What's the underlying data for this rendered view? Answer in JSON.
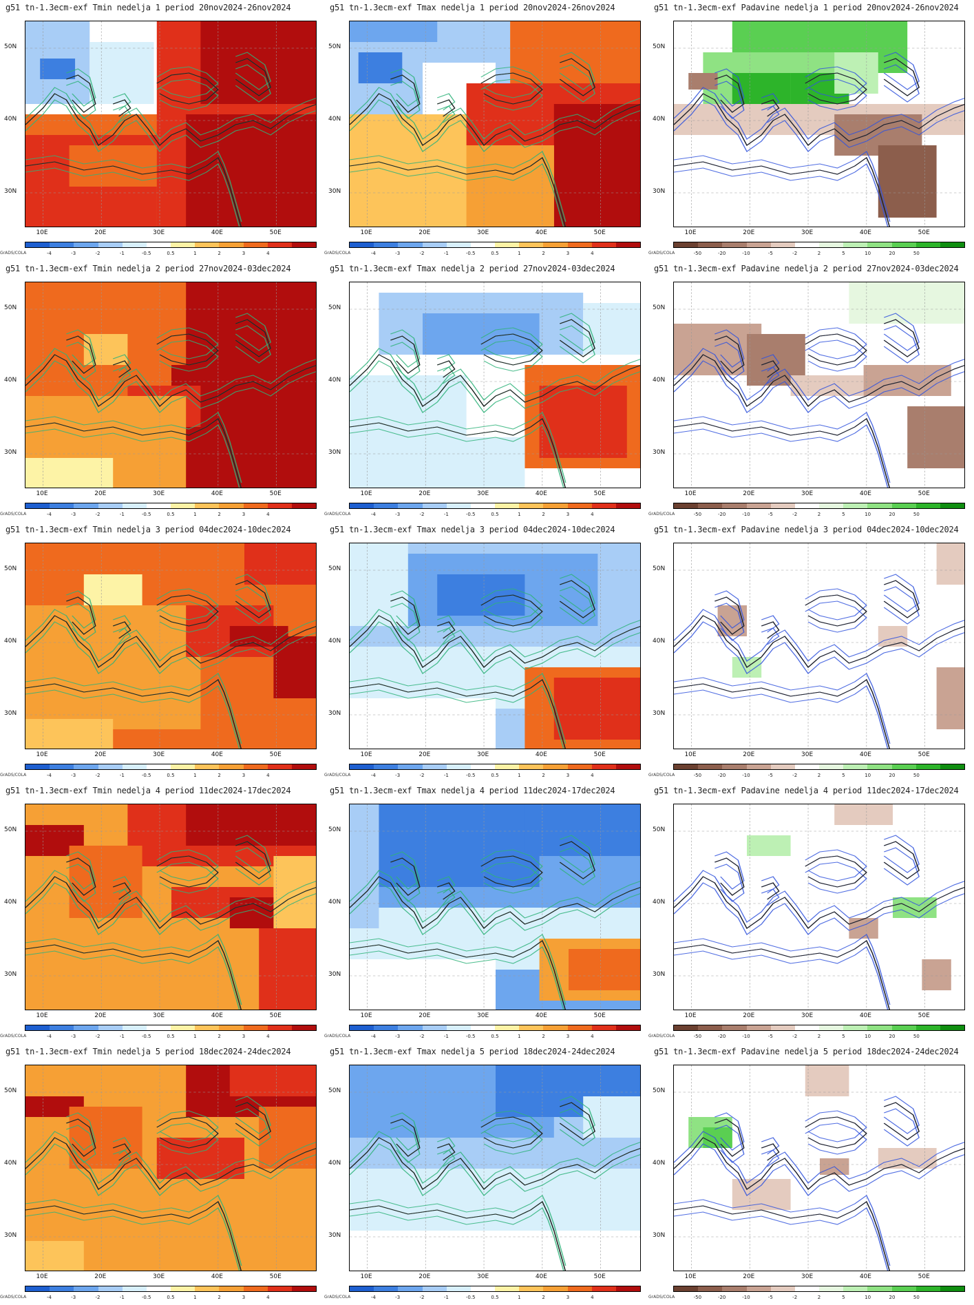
{
  "grads_label": "GrADS/COLA",
  "lat_labels": [
    "50N",
    "40N",
    "30N"
  ],
  "lon_labels": [
    "10E",
    "20E",
    "30E",
    "40E",
    "50E"
  ],
  "temp_scale": {
    "ticks": [
      "-4",
      "-3",
      "-2",
      "-1",
      "-0.5",
      "0.5",
      "1",
      "2",
      "3",
      "4"
    ],
    "colors": [
      "#1e5fd0",
      "#3d7fe0",
      "#6da6ee",
      "#a8cdf6",
      "#d8f0fb",
      "#ffffff",
      "#fdf3a6",
      "#fdc45a",
      "#f6a035",
      "#ef6a1e",
      "#e0301a",
      "#b10d0d"
    ]
  },
  "precip_scale": {
    "ticks": [
      "-50",
      "-20",
      "-10",
      "-5",
      "-2",
      "2",
      "5",
      "10",
      "20",
      "50"
    ],
    "colors": [
      "#6b4030",
      "#8c5e4c",
      "#a97e6d",
      "#c9a393",
      "#e4cbbf",
      "#ffffff",
      "#e6f7e0",
      "#bdf0b4",
      "#8fe283",
      "#5acf52",
      "#2db42a",
      "#0f8e10"
    ]
  },
  "panels": [
    {
      "row": 1,
      "col": 1,
      "title": "g51  tn-1.3ecm-exf Tmin nedelja 1 period 20nov2024-26nov2024",
      "var": "Tmin",
      "week": 1,
      "period": "20nov2024-26nov2024"
    },
    {
      "row": 1,
      "col": 2,
      "title": "g51  tn-1.3ecm-exf Tmax nedelja 1 period 20nov2024-26nov2024",
      "var": "Tmax",
      "week": 1,
      "period": "20nov2024-26nov2024"
    },
    {
      "row": 1,
      "col": 3,
      "title": "g51  tn-1.3ecm-exf Padavine nedelja 1 period 20nov2024-26nov2024",
      "var": "Padavine",
      "week": 1,
      "period": "20nov2024-26nov2024"
    },
    {
      "row": 2,
      "col": 1,
      "title": "g51  tn-1.3ecm-exf Tmin nedelja 2 period 27nov2024-03dec2024",
      "var": "Tmin",
      "week": 2,
      "period": "27nov2024-03dec2024"
    },
    {
      "row": 2,
      "col": 2,
      "title": "g51  tn-1.3ecm-exf Tmax nedelja 2 period 27nov2024-03dec2024",
      "var": "Tmax",
      "week": 2,
      "period": "27nov2024-03dec2024"
    },
    {
      "row": 2,
      "col": 3,
      "title": "g51  tn-1.3ecm-exf Padavine nedelja 2 period 27nov2024-03dec2024",
      "var": "Padavine",
      "week": 2,
      "period": "27nov2024-03dec2024"
    },
    {
      "row": 3,
      "col": 1,
      "title": "g51  tn-1.3ecm-exf Tmin nedelja 3 period 04dec2024-10dec2024",
      "var": "Tmin",
      "week": 3,
      "period": "04dec2024-10dec2024"
    },
    {
      "row": 3,
      "col": 2,
      "title": "g51  tn-1.3ecm-exf Tmax nedelja 3 period 04dec2024-10dec2024",
      "var": "Tmax",
      "week": 3,
      "period": "04dec2024-10dec2024"
    },
    {
      "row": 3,
      "col": 3,
      "title": "g51  tn-1.3ecm-exf Padavine nedelja 3 period 04dec2024-10dec2024",
      "var": "Padavine",
      "week": 3,
      "period": "04dec2024-10dec2024"
    },
    {
      "row": 4,
      "col": 1,
      "title": "g51  tn-1.3ecm-exf Tmin nedelja 4 period 11dec2024-17dec2024",
      "var": "Tmin",
      "week": 4,
      "period": "11dec2024-17dec2024"
    },
    {
      "row": 4,
      "col": 2,
      "title": "g51  tn-1.3ecm-exf Tmax nedelja 4 period 11dec2024-17dec2024",
      "var": "Tmax",
      "week": 4,
      "period": "11dec2024-17dec2024"
    },
    {
      "row": 4,
      "col": 3,
      "title": "g51  tn-1.3ecm-exf Padavine nedelja 4 period 11dec2024-17dec2024",
      "var": "Padavine",
      "week": 4,
      "period": "11dec2024-17dec2024"
    },
    {
      "row": 5,
      "col": 1,
      "title": "g51  tn-1.3ecm-exf Tmin nedelja 5 period 18dec2024-24dec2024",
      "var": "Tmin",
      "week": 5,
      "period": "18dec2024-24dec2024"
    },
    {
      "row": 5,
      "col": 2,
      "title": "g51  tn-1.3ecm-exf Tmax nedelja 5 period 18dec2024-24dec2024",
      "var": "Tmax",
      "week": 5,
      "period": "18dec2024-24dec2024"
    },
    {
      "row": 5,
      "col": 3,
      "title": "g51  tn-1.3ecm-exf Padavine nedelja 5 period 18dec2024-24dec2024",
      "var": "Padavine",
      "week": 5,
      "period": "18dec2024-24dec2024"
    }
  ]
}
